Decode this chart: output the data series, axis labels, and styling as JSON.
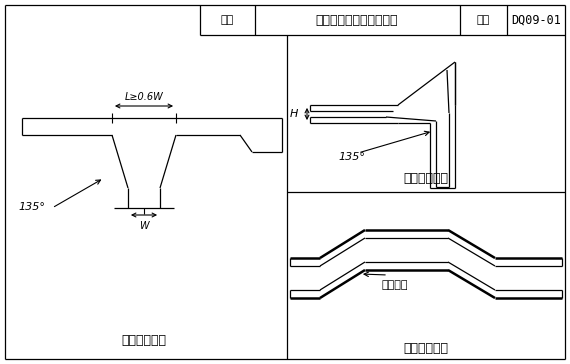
{
  "title_table": {
    "label1": "图名",
    "label2": "电缆桥架变向处连接做法",
    "label3": "图号",
    "label4": "DQ09-01"
  },
  "caption_tl": "槽架水平三通",
  "caption_tr": "槽架垂直弯头",
  "caption_br": "槽架水平偏弯",
  "ann_L": "L≥0.6W",
  "ann_135_left": "135°",
  "ann_W": "W",
  "ann_H": "H",
  "ann_135_right": "135°",
  "ann_fanwan": "翻弯角度",
  "line_color": "#000000",
  "bg_color": "#ffffff",
  "lw_outer": 1.8,
  "lw_inner": 0.9,
  "lw_dim": 0.8
}
